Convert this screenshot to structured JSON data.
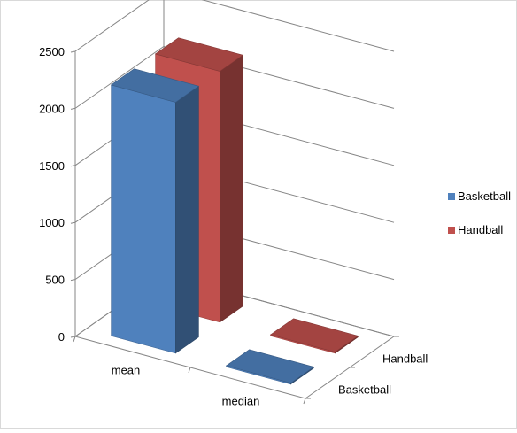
{
  "chart_data": {
    "type": "bar",
    "style": "3d-column",
    "categories": [
      "mean",
      "median"
    ],
    "series": [
      {
        "name": "Basketball",
        "values": [
          2200,
          10
        ],
        "color": "#4f81bd"
      },
      {
        "name": "Handball",
        "values": [
          2200,
          10
        ],
        "color": "#c0504d"
      }
    ],
    "ylim": [
      0,
      2500
    ],
    "yticks": [
      "0",
      "500",
      "1000",
      "1500",
      "2000",
      "2500"
    ],
    "depth_labels": [
      "Basketball",
      "Handball"
    ],
    "grid": true,
    "legend": "right"
  }
}
